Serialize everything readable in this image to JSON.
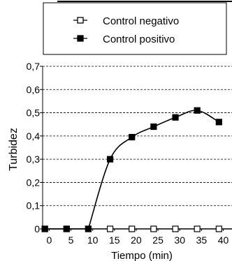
{
  "chart_data": {
    "type": "line",
    "title": "",
    "xlabel": "Tiempo (min)",
    "ylabel": "Turbidez",
    "xlim": [
      -1.5,
      42
    ],
    "ylim": [
      0,
      0.7
    ],
    "x_ticks": [
      0,
      5,
      10,
      15,
      20,
      25,
      30,
      35,
      40
    ],
    "y_ticks": [
      0,
      0.1,
      0.2,
      0.3,
      0.4,
      0.5,
      0.6,
      0.7
    ],
    "y_tick_labels": [
      "0",
      "0,1",
      "0,2",
      "0,3",
      "0,4",
      "0,5",
      "0,6",
      "0,7"
    ],
    "grid": "horizontal dashed",
    "legend_position": "top",
    "series": [
      {
        "name": "Control negativo",
        "marker": "open-square",
        "color": "#000000",
        "x": [
          -1,
          4,
          9,
          14,
          19,
          24,
          29,
          34,
          39
        ],
        "y": [
          0,
          0,
          0,
          0,
          0,
          0,
          0,
          0,
          0
        ]
      },
      {
        "name": "Control positivo",
        "marker": "filled-square",
        "color": "#000000",
        "x": [
          -1,
          4,
          9,
          14,
          19,
          24,
          29,
          34,
          39
        ],
        "y": [
          0,
          0,
          0,
          0.3,
          0.395,
          0.44,
          0.48,
          0.51,
          0.46
        ]
      }
    ]
  }
}
